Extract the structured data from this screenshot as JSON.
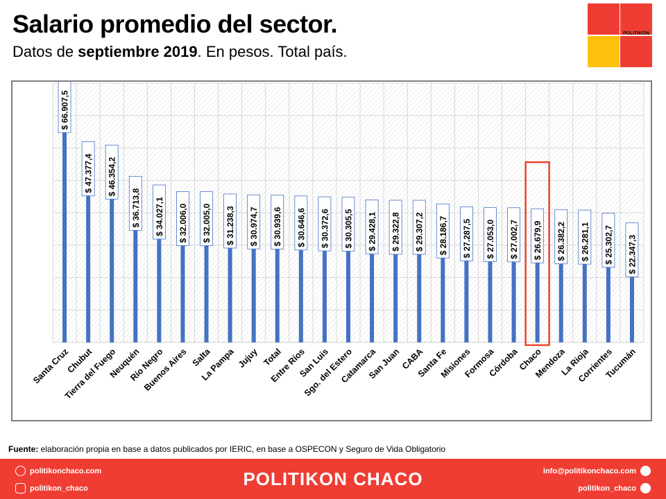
{
  "header": {
    "title": "Salario promedio del sector.",
    "subtitle_pre": "Datos de ",
    "subtitle_bold": "septiembre 2019",
    "subtitle_post": ". En pesos. Total país."
  },
  "logo": {
    "text": "POLITIKON",
    "colors": {
      "red": "#ef3d33",
      "yellow": "#fdc10e"
    }
  },
  "source": {
    "label": "Fuente:",
    "text": " elaboración propia en base a datos publicados por IERIC, en base a OSPECON y Seguro de Vida Obligatorio"
  },
  "footer": {
    "website": "politikonchaco.com",
    "instagram": "politikon_chaco",
    "brand": "POLITIKON CHACO",
    "email": "info@politikonchaco.com",
    "twitter": "politikon_chaco",
    "icons": [
      "globe-icon",
      "instagram-icon",
      "mail-icon",
      "twitter-icon"
    ]
  },
  "chart_data": {
    "type": "bar",
    "title": "Salario promedio del sector.",
    "xlabel": "",
    "ylabel": "",
    "ylim": [
      0,
      80000
    ],
    "grid": true,
    "legend": "none",
    "bar_color": "#4472c4",
    "highlight": "Chaco",
    "highlight_color": "#e8452c",
    "categories": [
      "Santa Cruz",
      "Chubut",
      "Tierra del Fuego",
      "Neuquén",
      "Río Negro",
      "Buenos Aires",
      "Salta",
      "La Pampa",
      "Jujuy",
      "Total",
      "Entre Ríos",
      "San Luis",
      "Sgo. del Estero",
      "Catamarca",
      "San Juan",
      "CABA",
      "Santa Fe",
      "Misiones",
      "Formosa",
      "Córdoba",
      "Chaco",
      "Mendoza",
      "La Rioja",
      "Corrientes",
      "Tucumán"
    ],
    "values": [
      66907.5,
      47377.4,
      46354.2,
      36713.8,
      34027.1,
      32006.0,
      32005.0,
      31238.3,
      30974.7,
      30939.6,
      30646.6,
      30372.6,
      30305.5,
      29428.1,
      29322.8,
      29307.2,
      28186.7,
      27287.5,
      27053.0,
      27002.7,
      26679.9,
      26382.2,
      26281.1,
      25302.7,
      22347.3
    ],
    "data_labels": [
      "$ 66.907,5",
      "$ 47.377,4",
      "$ 46.354,2",
      "$ 36.713,8",
      "$ 34.027,1",
      "$ 32.006,0",
      "$ 32.005,0",
      "$ 31.238,3",
      "$ 30.974,7",
      "$ 30.939,6",
      "$ 30.646,6",
      "$ 30.372,6",
      "$ 30.305,5",
      "$ 29.428,1",
      "$ 29.322,8",
      "$ 29.307,2",
      "$ 28.186,7",
      "$ 27.287,5",
      "$ 27.053,0",
      "$ 27.002,7",
      "$ 26.679,9",
      "$ 26.382,2",
      "$ 26.281,1",
      "$ 25.302,7",
      "$ 22.347,3"
    ]
  }
}
